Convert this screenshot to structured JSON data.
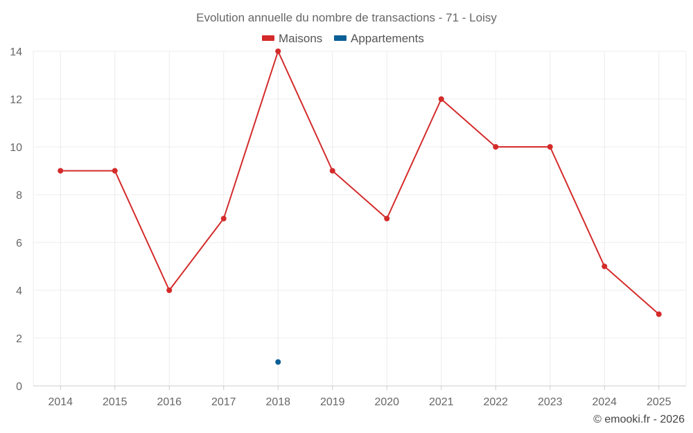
{
  "chart_data": {
    "type": "line",
    "title": "Evolution annuelle du nombre de transactions - 71 - Loisy",
    "categories": [
      "2014",
      "2015",
      "2016",
      "2017",
      "2018",
      "2019",
      "2020",
      "2021",
      "2022",
      "2023",
      "2024",
      "2025"
    ],
    "ylim": [
      0,
      14
    ],
    "yticks": [
      0,
      2,
      4,
      6,
      8,
      10,
      12,
      14
    ],
    "grid": true,
    "legend_position": "top-center",
    "series": [
      {
        "name": "Maisons",
        "color": "#d42a2a",
        "values": [
          9,
          9,
          4,
          7,
          14,
          9,
          7,
          12,
          10,
          10,
          5,
          3
        ]
      },
      {
        "name": "Appartements",
        "color": "#0b5f96",
        "values": [
          null,
          null,
          null,
          null,
          1,
          null,
          null,
          null,
          null,
          null,
          null,
          null
        ]
      }
    ]
  },
  "credit": "© emooki.fr - 2026"
}
